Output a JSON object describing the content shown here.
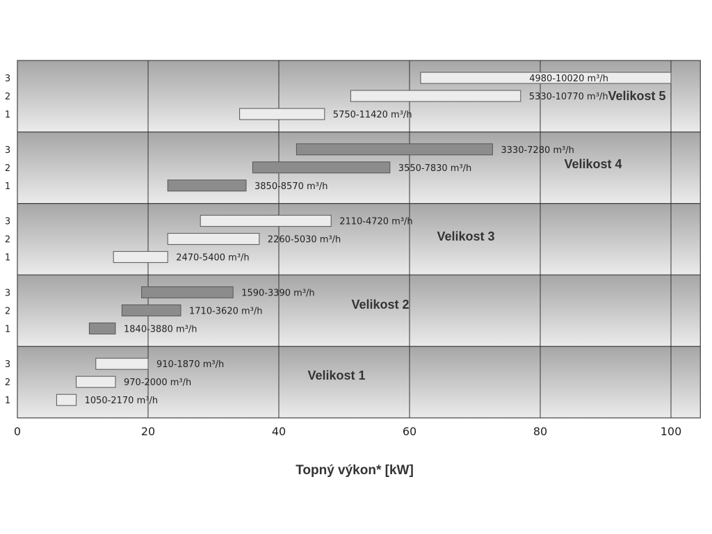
{
  "chart_data": {
    "type": "bar",
    "orientation": "horizontal-range",
    "title": "",
    "xlabel": "Topný výkon* [kW]",
    "ylabel": "",
    "xlim": [
      0,
      104.5
    ],
    "xticks": [
      0,
      20,
      40,
      60,
      80,
      100
    ],
    "grid": true,
    "row_labels": [
      "1",
      "2",
      "3"
    ],
    "unit_suffix": " m³/h",
    "groups": [
      {
        "name": "Velikost 1",
        "style": "light",
        "bars": [
          {
            "row": "1",
            "start": 6,
            "end": 9,
            "label": "1050-2170"
          },
          {
            "row": "2",
            "start": 9,
            "end": 15,
            "label": "970-2000"
          },
          {
            "row": "3",
            "start": 12,
            "end": 20,
            "label": "910-1870"
          }
        ]
      },
      {
        "name": "Velikost 2",
        "style": "dark",
        "bars": [
          {
            "row": "1",
            "start": 11,
            "end": 15,
            "label": "1840-3880"
          },
          {
            "row": "2",
            "start": 16,
            "end": 25,
            "label": "1710-3620"
          },
          {
            "row": "3",
            "start": 19,
            "end": 33,
            "label": "1590-3390"
          }
        ]
      },
      {
        "name": "Velikost 3",
        "style": "light",
        "bars": [
          {
            "row": "1",
            "start": 14.7,
            "end": 23,
            "label": "2470-5400"
          },
          {
            "row": "2",
            "start": 23,
            "end": 37,
            "label": "2260-5030"
          },
          {
            "row": "3",
            "start": 28,
            "end": 48,
            "label": "2110-4720"
          }
        ]
      },
      {
        "name": "Velikost 4",
        "style": "dark",
        "bars": [
          {
            "row": "1",
            "start": 23,
            "end": 35,
            "label": "3850-8570"
          },
          {
            "row": "2",
            "start": 36,
            "end": 57,
            "label": "3550-7830"
          },
          {
            "row": "3",
            "start": 42.7,
            "end": 72.7,
            "label": "3330-7280"
          }
        ]
      },
      {
        "name": "Velikost 5",
        "style": "light",
        "bars": [
          {
            "row": "1",
            "start": 34,
            "end": 47,
            "label": "5750-11420"
          },
          {
            "row": "2",
            "start": 51,
            "end": 77,
            "label": "5330-10770"
          },
          {
            "row": "3",
            "start": 61.7,
            "end": 100,
            "label": "4980-10020"
          }
        ]
      }
    ],
    "colors": {
      "light": "#ececec",
      "dark": "#8c8c8c",
      "border": "#555555"
    }
  }
}
